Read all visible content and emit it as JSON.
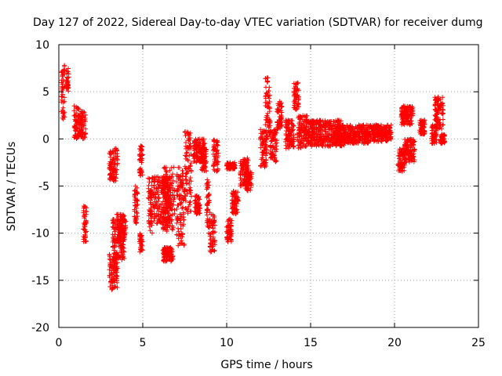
{
  "chart_data": {
    "type": "scatter",
    "title": "Day 127 of 2022, Sidereal Day-to-day VTEC variation (SDTVAR) for receiver dumg",
    "xlabel": "GPS time / hours",
    "ylabel": "SDTVAR / TECUs",
    "xlim": [
      0,
      25
    ],
    "ylim": [
      -20,
      10
    ],
    "xticks": [
      0,
      5,
      10,
      15,
      20,
      25
    ],
    "yticks": [
      -20,
      -15,
      -10,
      -5,
      0,
      5,
      10
    ],
    "grid": true,
    "marker": "+",
    "marker_color": "#ff0000",
    "series": [
      {
        "name": "SDTVAR",
        "segments": [
          {
            "x0": 0.15,
            "x1": 0.35,
            "ymin": 2.0,
            "ymax": 8.0
          },
          {
            "x0": 0.45,
            "x1": 0.6,
            "ymin": 5.0,
            "ymax": 7.5
          },
          {
            "x0": 0.9,
            "x1": 1.2,
            "ymin": 0.0,
            "ymax": 3.5
          },
          {
            "x0": 1.2,
            "x1": 1.6,
            "ymin": 0.0,
            "ymax": 3.0
          },
          {
            "x0": 1.45,
            "x1": 1.65,
            "ymin": -11.0,
            "ymax": -7.0
          },
          {
            "x0": 3.0,
            "x1": 3.5,
            "ymin": -4.5,
            "ymax": -1.0
          },
          {
            "x0": 3.0,
            "x1": 3.5,
            "ymin": -16.0,
            "ymax": -12.0
          },
          {
            "x0": 3.2,
            "x1": 3.9,
            "ymin": -13.0,
            "ymax": -8.0
          },
          {
            "x0": 3.5,
            "x1": 4.0,
            "ymin": -11.0,
            "ymax": -8.0
          },
          {
            "x0": 4.5,
            "x1": 4.7,
            "ymin": -9.0,
            "ymax": -5.0
          },
          {
            "x0": 4.8,
            "x1": 5.0,
            "ymin": -4.0,
            "ymax": -0.5
          },
          {
            "x0": 4.8,
            "x1": 5.0,
            "ymin": -12.0,
            "ymax": -10.0
          },
          {
            "x0": 5.3,
            "x1": 5.6,
            "ymin": -10.0,
            "ymax": -4.0
          },
          {
            "x0": 5.6,
            "x1": 6.6,
            "ymin": -9.0,
            "ymax": -4.0
          },
          {
            "x0": 6.2,
            "x1": 6.9,
            "ymin": -10.0,
            "ymax": -3.0
          },
          {
            "x0": 6.2,
            "x1": 6.8,
            "ymin": -13.0,
            "ymax": -11.5
          },
          {
            "x0": 7.0,
            "x1": 7.5,
            "ymin": -11.5,
            "ymax": -3.0
          },
          {
            "x0": 7.5,
            "x1": 7.9,
            "ymin": -8.0,
            "ymax": 1.0
          },
          {
            "x0": 8.1,
            "x1": 8.4,
            "ymin": -8.0,
            "ymax": -6.0
          },
          {
            "x0": 8.0,
            "x1": 8.7,
            "ymin": -2.5,
            "ymax": 0.0
          },
          {
            "x0": 8.5,
            "x1": 8.8,
            "ymin": -3.5,
            "ymax": -1.0
          },
          {
            "x0": 8.8,
            "x1": 9.0,
            "ymin": -10.0,
            "ymax": -4.0
          },
          {
            "x0": 9.0,
            "x1": 9.3,
            "ymin": -12.0,
            "ymax": -8.0
          },
          {
            "x0": 9.2,
            "x1": 9.5,
            "ymin": -3.5,
            "ymax": 0.0
          },
          {
            "x0": 10.0,
            "x1": 10.3,
            "ymin": -11.0,
            "ymax": -8.5
          },
          {
            "x0": 10.0,
            "x1": 10.5,
            "ymin": -3.2,
            "ymax": -2.5
          },
          {
            "x0": 10.3,
            "x1": 10.7,
            "ymin": -8.0,
            "ymax": -5.5
          },
          {
            "x0": 10.8,
            "x1": 11.3,
            "ymin": -5.0,
            "ymax": -2.0
          },
          {
            "x0": 11.1,
            "x1": 11.5,
            "ymin": -5.5,
            "ymax": -3.5
          },
          {
            "x0": 12.0,
            "x1": 12.4,
            "ymin": -3.0,
            "ymax": 1.0
          },
          {
            "x0": 12.3,
            "x1": 12.6,
            "ymin": 0.0,
            "ymax": 6.5
          },
          {
            "x0": 12.6,
            "x1": 13.0,
            "ymin": -2.5,
            "ymax": 1.0
          },
          {
            "x0": 13.0,
            "x1": 13.3,
            "ymin": 1.0,
            "ymax": 4.0
          },
          {
            "x0": 13.5,
            "x1": 14.0,
            "ymin": -1.0,
            "ymax": 2.0
          },
          {
            "x0": 14.0,
            "x1": 14.3,
            "ymin": 3.0,
            "ymax": 6.0
          },
          {
            "x0": 14.2,
            "x1": 14.8,
            "ymin": -1.0,
            "ymax": 2.5
          },
          {
            "x0": 14.8,
            "x1": 17.0,
            "ymin": -0.8,
            "ymax": 2.0
          },
          {
            "x0": 16.5,
            "x1": 18.5,
            "ymin": -0.5,
            "ymax": 1.5
          },
          {
            "x0": 18.5,
            "x1": 19.8,
            "ymin": -0.3,
            "ymax": 1.5
          },
          {
            "x0": 20.2,
            "x1": 20.6,
            "ymin": -3.5,
            "ymax": -1.0
          },
          {
            "x0": 20.4,
            "x1": 21.1,
            "ymin": 1.5,
            "ymax": 3.5
          },
          {
            "x0": 20.6,
            "x1": 21.2,
            "ymin": -2.5,
            "ymax": 0.0
          },
          {
            "x0": 21.5,
            "x1": 21.8,
            "ymin": 0.5,
            "ymax": 2.0
          },
          {
            "x0": 22.2,
            "x1": 22.5,
            "ymin": -0.5,
            "ymax": 1.5
          },
          {
            "x0": 22.4,
            "x1": 22.9,
            "ymin": 1.0,
            "ymax": 4.5
          },
          {
            "x0": 22.7,
            "x1": 23.0,
            "ymin": -0.5,
            "ymax": 0.5
          }
        ]
      }
    ]
  }
}
